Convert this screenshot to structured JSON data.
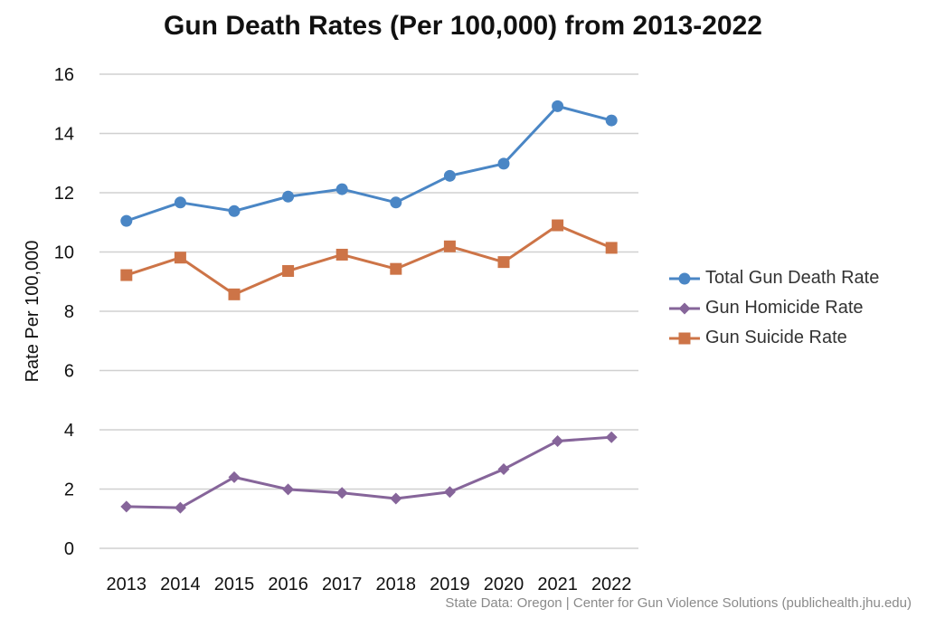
{
  "chart_data": {
    "type": "line",
    "title": "Gun Death Rates (Per 100,000) from 2013-2022",
    "xlabel": "",
    "ylabel": "Rate Per 100,000",
    "categories": [
      "2013",
      "2014",
      "2015",
      "2016",
      "2017",
      "2018",
      "2019",
      "2020",
      "2021",
      "2022"
    ],
    "ylim": [
      0,
      16
    ],
    "yticks": [
      0,
      2,
      4,
      6,
      8,
      10,
      12,
      14,
      16
    ],
    "grid": true,
    "legend_position": "right",
    "series": [
      {
        "name": "Total Gun Death Rate",
        "color": "#4a86c5",
        "marker": "circle",
        "values": [
          11.05,
          11.67,
          11.38,
          11.87,
          12.12,
          11.67,
          12.57,
          12.98,
          14.92,
          14.44
        ]
      },
      {
        "name": "Gun Homicide Rate",
        "color": "#86659a",
        "marker": "diamond",
        "values": [
          1.41,
          1.37,
          2.4,
          1.99,
          1.87,
          1.68,
          1.9,
          2.67,
          3.62,
          3.75
        ]
      },
      {
        "name": "Gun Suicide Rate",
        "color": "#cd7447",
        "marker": "square",
        "values": [
          9.22,
          9.81,
          8.57,
          9.36,
          9.91,
          9.43,
          10.19,
          9.66,
          10.9,
          10.14
        ]
      }
    ],
    "source": "State Data: Oregon | Center for Gun Violence Solutions (publichealth.jhu.edu)"
  }
}
